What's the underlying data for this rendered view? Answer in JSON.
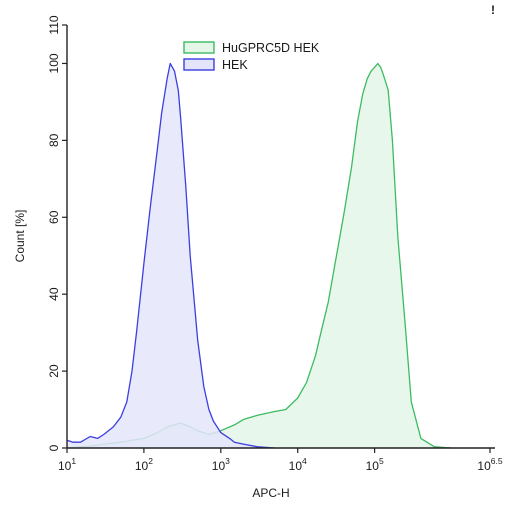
{
  "chart_data": {
    "type": "area",
    "title": "",
    "xlabel": "APC-H",
    "ylabel": "Count [%]",
    "x_scale": "log10",
    "xlim": [
      10,
      3162277.66
    ],
    "ylim": [
      0,
      110
    ],
    "x_ticks": [
      {
        "value": 10,
        "base": "10",
        "exp": "1"
      },
      {
        "value": 100,
        "base": "10",
        "exp": "2"
      },
      {
        "value": 1000,
        "base": "10",
        "exp": "3"
      },
      {
        "value": 10000,
        "base": "10",
        "exp": "4"
      },
      {
        "value": 100000,
        "base": "10",
        "exp": "5"
      },
      {
        "value": 3162277.66,
        "base": "10",
        "exp": "6.5"
      }
    ],
    "y_ticks": [
      "0",
      "20",
      "40",
      "60",
      "80",
      "100",
      "110"
    ],
    "grid": false,
    "legend_position": "top-center",
    "corner_mark": "!",
    "series": [
      {
        "name": "HuGPRC5D HEK",
        "stroke": "#3dbb62",
        "fill": "#e3f6e8",
        "x": [
          10,
          15,
          20,
          30,
          50,
          70,
          100,
          150,
          200,
          250,
          300,
          400,
          500,
          700,
          1000,
          1500,
          2000,
          3000,
          5000,
          7000,
          10000,
          13000,
          17000,
          20000,
          25000,
          30000,
          40000,
          50000,
          60000,
          70000,
          80000,
          90000,
          100000,
          110000,
          120000,
          130000,
          140000,
          150000,
          170000,
          200000,
          250000,
          300000,
          400000,
          600000,
          1000000
        ],
        "y": [
          0,
          0.3,
          0.5,
          1,
          1.5,
          2,
          2.5,
          4,
          5.5,
          6,
          6.5,
          5.5,
          4.5,
          3.5,
          4.5,
          6,
          7.5,
          8.5,
          9.5,
          10,
          13,
          17,
          24,
          30,
          38,
          47,
          61,
          73,
          85,
          92,
          96,
          98,
          99,
          100,
          99,
          97,
          95,
          93,
          80,
          55,
          32,
          12,
          2.5,
          0.3,
          0
        ]
      },
      {
        "name": "HEK",
        "stroke": "#3b3fe0",
        "fill": "#e4e5fa",
        "x": [
          10,
          12,
          15,
          20,
          25,
          30,
          40,
          50,
          60,
          70,
          80,
          100,
          120,
          150,
          170,
          200,
          220,
          250,
          280,
          300,
          350,
          400,
          500,
          600,
          700,
          800,
          1000,
          1300,
          1500,
          2000,
          3000,
          5000
        ],
        "y": [
          2,
          1.5,
          1.5,
          3,
          2.5,
          3.5,
          5.5,
          8,
          12,
          20,
          30,
          48,
          62,
          78,
          87,
          96,
          100,
          98,
          93,
          86,
          68,
          50,
          28,
          16,
          10,
          7,
          4,
          2.5,
          1.5,
          1,
          0.3,
          0
        ]
      }
    ]
  }
}
